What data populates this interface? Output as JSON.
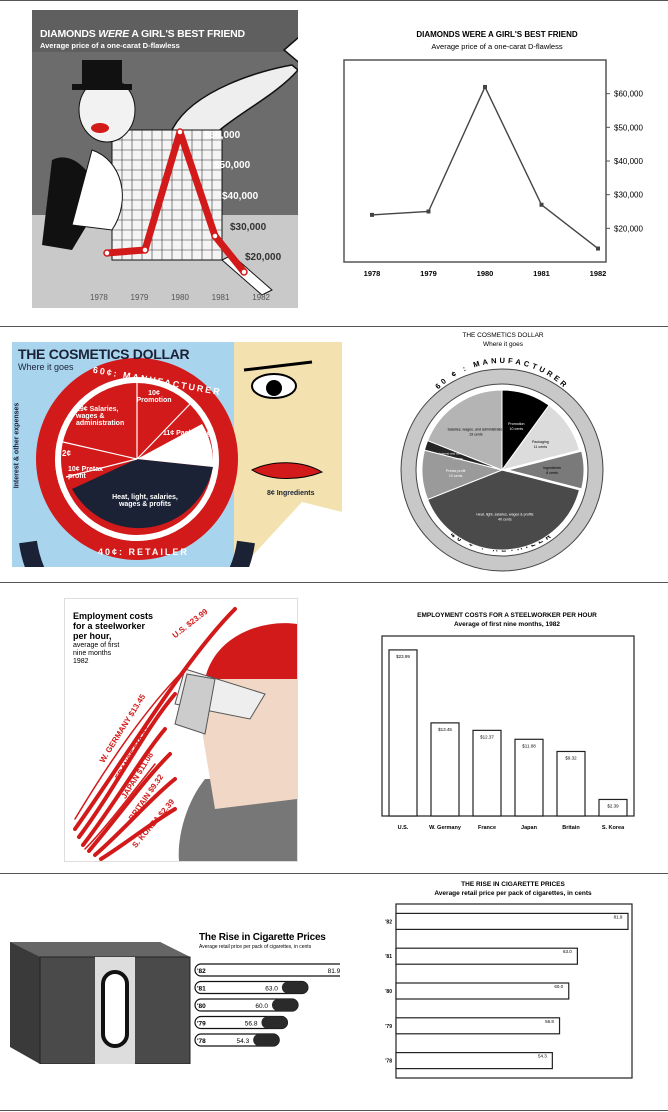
{
  "panels": {
    "diamonds": {
      "art": {
        "title": "DIAMONDS WERE A GIRL'S BEST FRIEND",
        "title_parts": [
          "DIAMONDS ",
          "WERE",
          " A GIRL'S BEST FRIEND"
        ],
        "subtitle": "Average price of a one-carat D-flawless",
        "y_labels": [
          "$60,000",
          "$50,000",
          "$40,000",
          "$30,000",
          "$20,000"
        ],
        "x_labels": [
          "1978",
          "1979",
          "1980",
          "1981",
          "1982"
        ]
      },
      "plain": {
        "title": "DIAMONDS WERE A GIRL'S BEST FRIEND",
        "subtitle": "Average price of a one-carat D-flawless"
      }
    },
    "cosmetics": {
      "art": {
        "title": "THE COSMETICS DOLLAR",
        "subtitle": "Where it goes",
        "manufacturer": "60¢: MANUFACTURER",
        "retailer": "40¢: RETAILER",
        "side_label": "Interest & other expenses",
        "promotion": "10¢ Promotion",
        "packaging": "11¢ Packaging",
        "salaries": "19¢ Salaries, wages & administration",
        "two_cents": "2¢",
        "pretax": "10¢ Pretax profit",
        "heat": "Heat, light, salaries, wages & profits",
        "ingredients": "8¢ Ingredients"
      },
      "plain": {
        "title": "THE COSMETICS DOLLAR",
        "subtitle": "Where it goes",
        "manufacturer": "60 ¢ : MANUFACTURER",
        "retailer": "40 ¢ : RETAILER"
      }
    },
    "steel": {
      "art": {
        "title_lines": [
          "Employment costs",
          "for a steelworker",
          "per hour,"
        ],
        "sub_lines": [
          "average of first",
          "nine months",
          "1982"
        ],
        "streaks": [
          "U.S. $23.99",
          "W. GERMANY $13.45",
          "FRANCE $12.37",
          "JAPAN $11.08",
          "BRITAIN $9.32",
          "S. KOREA $2.39"
        ]
      },
      "plain": {
        "title": "EMPLOYMENT COSTS FOR A STEELWORKER PER HOUR",
        "subtitle": "Average of first nine months, 1982"
      }
    },
    "cigarettes": {
      "art": {
        "title": "The Rise in Cigarette Prices",
        "subtitle": "Average retail price per pack of cigarettes, in cents"
      },
      "plain": {
        "title": "THE RISE IN CIGARETTE PRICES",
        "subtitle": "Average retail price per pack of cigarettes, in cents"
      }
    }
  },
  "chart_data": [
    {
      "type": "line",
      "title": "DIAMONDS WERE A GIRL'S BEST FRIEND",
      "subtitle": "Average price of a one-carat D-flawless",
      "x": [
        "1978",
        "1979",
        "1980",
        "1981",
        "1982"
      ],
      "values": [
        24000,
        25000,
        62000,
        27000,
        14000
      ],
      "ylim": [
        10000,
        70000
      ],
      "yticks": [
        20000,
        30000,
        40000,
        50000,
        60000
      ],
      "ytick_labels": [
        "$20,000",
        "$30,000",
        "$40,000",
        "$50,000",
        "$60,000"
      ],
      "y_axis_side": "right",
      "color": "#444444"
    },
    {
      "type": "pie",
      "title": "THE COSMETICS DOLLAR",
      "subtitle": "Where it goes",
      "slices": [
        {
          "label": "Promotion",
          "sublabel": "10 cents",
          "value": 10,
          "color": "#000000",
          "text_color": "#ffffff"
        },
        {
          "label": "Packaging",
          "sublabel": "11 cents",
          "value": 11,
          "color": "#dcdcdc",
          "text_color": "#000000"
        },
        {
          "label": "Ingredients",
          "sublabel": "8 cents",
          "value": 8,
          "color": "#7a7a7a",
          "text_color": "#000000",
          "exploded": true
        },
        {
          "label": "Heat, light, salaries, wages & profits",
          "sublabel": "40 cents",
          "value": 40,
          "color": "#4a4a4a",
          "text_color": "#ffffff"
        },
        {
          "label": "Pretax profit",
          "sublabel": "10 cents",
          "value": 10,
          "color": "#9a9a9a",
          "text_color": "#ffffff"
        },
        {
          "label": "Interest and other expenses",
          "sublabel": "2 cents",
          "value": 2,
          "color": "#262626",
          "text_color": "#ffffff"
        },
        {
          "label": "Salaries, wages, and administration",
          "sublabel": "19 cents",
          "value": 19,
          "color": "#b4b4b4",
          "text_color": "#000000"
        }
      ]
    },
    {
      "type": "bar",
      "title": "EMPLOYMENT COSTS FOR A STEELWORKER PER HOUR",
      "subtitle": "Average of first nine months, 1982",
      "categories": [
        "U.S.",
        "W. Germany",
        "France",
        "Japan",
        "Britain",
        "S. Korea"
      ],
      "values": [
        23.99,
        13.45,
        12.37,
        11.08,
        9.32,
        2.39
      ],
      "value_labels": [
        "$23.99",
        "$13.45",
        "$12.37",
        "$11.08",
        "$9.32",
        "$2.39"
      ],
      "ylim": [
        0,
        26
      ]
    },
    {
      "type": "bar",
      "orientation": "horizontal",
      "title": "THE RISE IN CIGARETTE PRICES",
      "subtitle": "Average retail price per pack of cigarettes, in cents",
      "categories": [
        "'82",
        "'81",
        "'80",
        "'79",
        "'78"
      ],
      "values": [
        81.9,
        63.0,
        60.0,
        56.8,
        54.3
      ],
      "value_labels": [
        "81.9",
        "63.0",
        "60.0",
        "56.8",
        "54.3"
      ],
      "xlim": [
        0,
        100
      ]
    }
  ]
}
